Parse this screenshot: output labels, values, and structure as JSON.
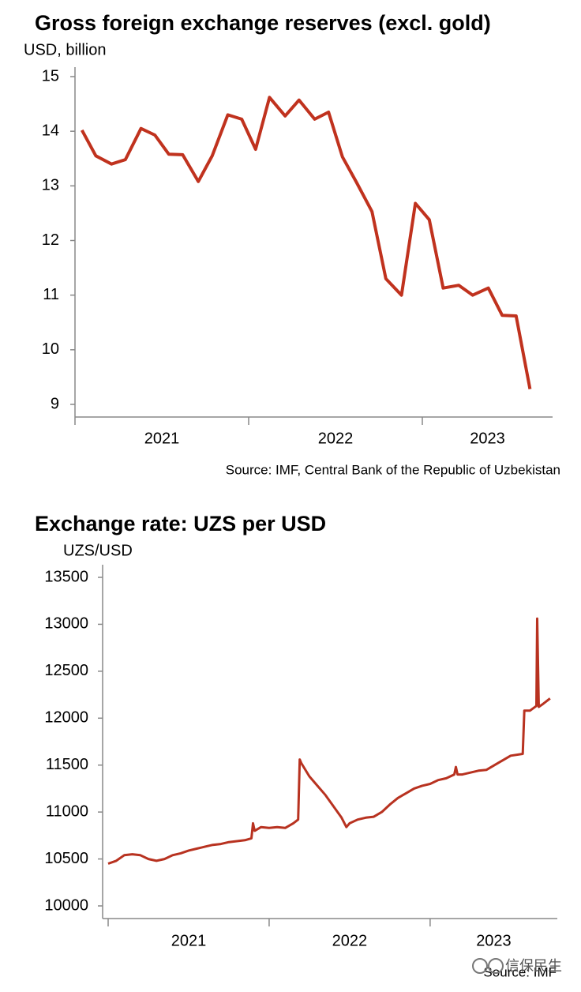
{
  "chart_data": [
    {
      "type": "line",
      "title": "Gross foreign exchange reserves (excl. gold)",
      "y_label": "USD, billion",
      "source": "Source: IMF, Central Bank of the Republic of Uzbekistan",
      "color": "#c0321e",
      "x": [
        2021.04,
        2021.12,
        2021.21,
        2021.29,
        2021.38,
        2021.46,
        2021.54,
        2021.62,
        2021.71,
        2021.79,
        2021.88,
        2021.96,
        2022.04,
        2022.12,
        2022.21,
        2022.29,
        2022.38,
        2022.46,
        2022.54,
        2022.62,
        2022.71,
        2022.79,
        2022.88,
        2022.96,
        2023.04,
        2023.12,
        2023.21,
        2023.29,
        2023.38,
        2023.46,
        2023.54,
        2023.62
      ],
      "values": [
        14.02,
        13.55,
        13.4,
        13.48,
        14.05,
        13.93,
        13.58,
        13.57,
        13.08,
        13.55,
        14.3,
        14.22,
        13.67,
        14.62,
        14.28,
        14.57,
        14.22,
        14.35,
        13.53,
        13.07,
        12.53,
        11.3,
        11.0,
        12.68,
        12.38,
        11.13,
        11.18,
        11.0,
        11.13,
        10.63,
        10.62,
        9.28
      ],
      "xlim": [
        2021,
        2023.75
      ],
      "xticks": [
        2021,
        2022,
        2023
      ],
      "ylim": [
        9,
        15
      ],
      "yticks": [
        9,
        10,
        11,
        12,
        13,
        14,
        15
      ]
    },
    {
      "type": "line",
      "title": "Exchange rate: UZS per USD",
      "y_label": "UZS/USD",
      "source": "Source: IMF",
      "color": "#b83220",
      "x": [
        2021.0,
        2021.05,
        2021.1,
        2021.15,
        2021.2,
        2021.25,
        2021.3,
        2021.35,
        2021.4,
        2021.45,
        2021.5,
        2021.55,
        2021.6,
        2021.65,
        2021.7,
        2021.75,
        2021.8,
        2021.85,
        2021.89,
        2021.9,
        2021.91,
        2021.95,
        2022.0,
        2022.05,
        2022.1,
        2022.15,
        2022.18,
        2022.19,
        2022.2,
        2022.25,
        2022.3,
        2022.35,
        2022.4,
        2022.45,
        2022.48,
        2022.5,
        2022.55,
        2022.6,
        2022.65,
        2022.7,
        2022.75,
        2022.8,
        2022.85,
        2022.9,
        2022.95,
        2023.0,
        2023.05,
        2023.1,
        2023.15,
        2023.16,
        2023.17,
        2023.2,
        2023.25,
        2023.3,
        2023.35,
        2023.4,
        2023.5,
        2023.575,
        2023.585,
        2023.62,
        2023.66,
        2023.665,
        2023.675,
        2023.7,
        2023.745
      ],
      "values": [
        10450,
        10480,
        10540,
        10550,
        10540,
        10500,
        10480,
        10500,
        10540,
        10560,
        10590,
        10610,
        10630,
        10650,
        10660,
        10680,
        10690,
        10700,
        10720,
        10880,
        10800,
        10840,
        10830,
        10840,
        10830,
        10880,
        10920,
        11560,
        11520,
        11380,
        11280,
        11180,
        11060,
        10940,
        10840,
        10880,
        10920,
        10940,
        10950,
        11000,
        11080,
        11150,
        11200,
        11250,
        11280,
        11300,
        11340,
        11360,
        11400,
        11480,
        11400,
        11400,
        11420,
        11440,
        11450,
        11500,
        11600,
        11620,
        12080,
        12080,
        12130,
        13060,
        12120,
        12150,
        12210
      ],
      "xlim": [
        2021,
        2023.79
      ],
      "xticks": [
        2021,
        2022,
        2023
      ],
      "ylim": [
        10000,
        13500
      ],
      "yticks": [
        10000,
        10500,
        11000,
        11500,
        12000,
        12500,
        13000,
        13500
      ]
    }
  ],
  "watermark": "信保民生"
}
